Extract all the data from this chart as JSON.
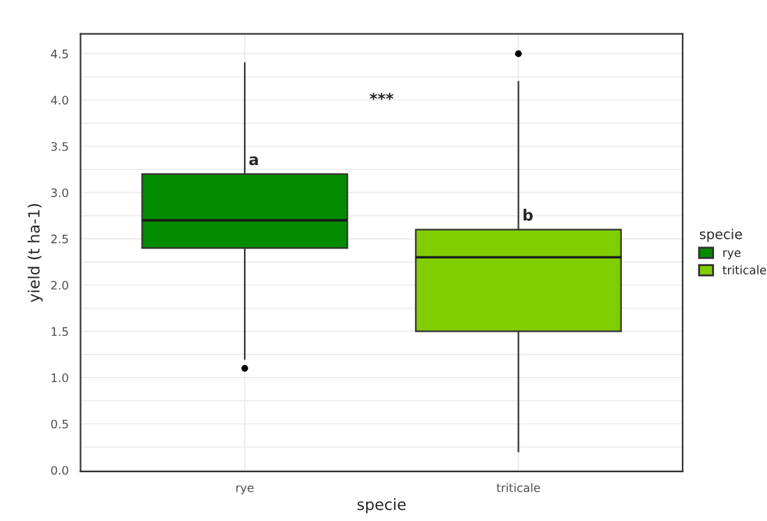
{
  "chart_data": {
    "type": "box",
    "xlabel": "specie",
    "ylabel": "yield (t ha-1)",
    "legend_title": "specie",
    "categories": [
      "rye",
      "triticale"
    ],
    "series": [
      {
        "name": "rye",
        "color": "#008b00",
        "boxes": [
          {
            "low": 1.2,
            "q1": 2.4,
            "median": 2.7,
            "q3": 3.2,
            "high": 4.4,
            "outliers": [
              1.1
            ]
          },
          null
        ]
      },
      {
        "name": "triticale",
        "color": "#80cd00",
        "boxes": [
          null,
          {
            "low": 0.2,
            "q1": 1.5,
            "median": 2.3,
            "q3": 2.6,
            "high": 4.2,
            "outliers": [
              4.5
            ]
          }
        ]
      }
    ],
    "ylim": [
      -0.015,
      4.715
    ],
    "yticks": [
      {
        "value": 0,
        "label": "0.0"
      },
      {
        "value": 0.5,
        "label": "0.5"
      },
      {
        "value": 1,
        "label": "1.0"
      },
      {
        "value": 1.5,
        "label": "1.5"
      },
      {
        "value": 2,
        "label": "2.0"
      },
      {
        "value": 2.5,
        "label": "2.5"
      },
      {
        "value": 3,
        "label": "3.0"
      },
      {
        "value": 3.5,
        "label": "3.5"
      },
      {
        "value": 4,
        "label": "4.0"
      },
      {
        "value": 4.5,
        "label": "4.5"
      }
    ],
    "annotations": [
      {
        "text": "a",
        "x": "rye",
        "y": 3.2
      },
      {
        "text": "b",
        "x": "triticale",
        "y": 2.6
      },
      "***"
    ],
    "grid": true,
    "legend": "right"
  }
}
